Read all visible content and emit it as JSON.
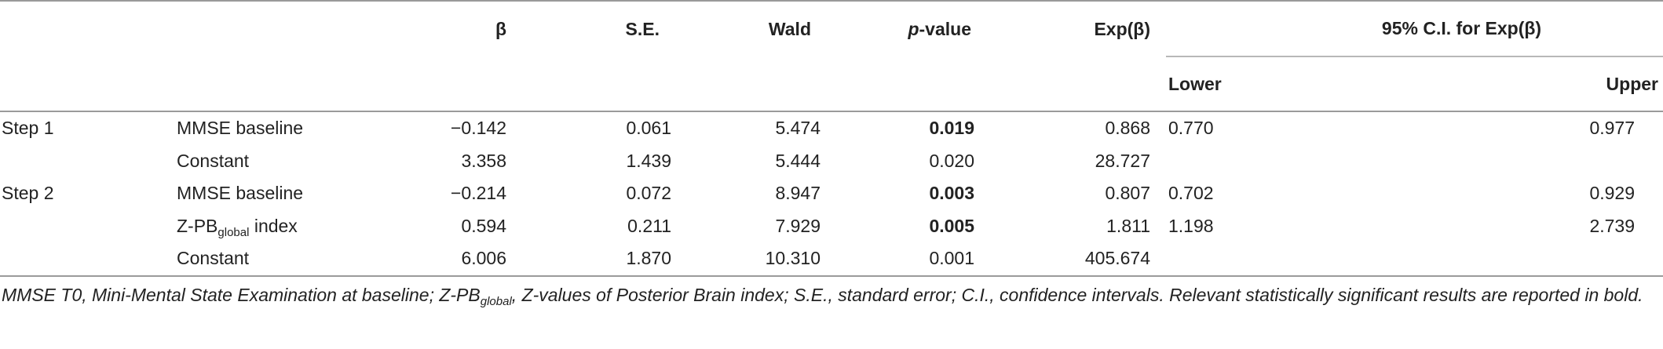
{
  "table": {
    "headers": {
      "beta": "β",
      "se": "S.E.",
      "wald": "Wald",
      "p_prefix": "p",
      "p_suffix": "-value",
      "exp": "Exp(β)",
      "ci": "95% C.I. for Exp(β)",
      "lower": "Lower",
      "upper": "Upper"
    },
    "rows": [
      {
        "step": "Step 1",
        "predictor": "MMSE baseline",
        "beta": "−0.142",
        "se": "0.061",
        "wald": "5.474",
        "p": "0.019",
        "p_bold": true,
        "exp": "0.868",
        "lower": "0.770",
        "upper": "0.977"
      },
      {
        "step": "",
        "predictor": "Constant",
        "beta": "3.358",
        "se": "1.439",
        "wald": "5.444",
        "p": "0.020",
        "p_bold": false,
        "exp": "28.727",
        "lower": "",
        "upper": ""
      },
      {
        "step": "Step 2",
        "predictor": "MMSE baseline",
        "beta": "−0.214",
        "se": "0.072",
        "wald": "8.947",
        "p": "0.003",
        "p_bold": true,
        "exp": "0.807",
        "lower": "0.702",
        "upper": "0.929"
      },
      {
        "step": "",
        "predictor_pre": "Z-PB",
        "predictor_sub": "global",
        "predictor_post": " index",
        "beta": "0.594",
        "se": "0.211",
        "wald": "7.929",
        "p": "0.005",
        "p_bold": true,
        "exp": "1.811",
        "lower": "1.198",
        "upper": "2.739"
      },
      {
        "step": "",
        "predictor": "Constant",
        "beta": "6.006",
        "se": "1.870",
        "wald": "10.310",
        "p": "0.001",
        "p_bold": false,
        "exp": "405.674",
        "lower": "",
        "upper": ""
      }
    ]
  },
  "footnote": {
    "part1": "MMSE T0, Mini-Mental State Examination at baseline; Z-PB",
    "sub": "global",
    "part2": ", Z-values of Posterior Brain index; S.E., standard error; C.I., confidence intervals. Relevant statistically significant results are reported in bold."
  }
}
